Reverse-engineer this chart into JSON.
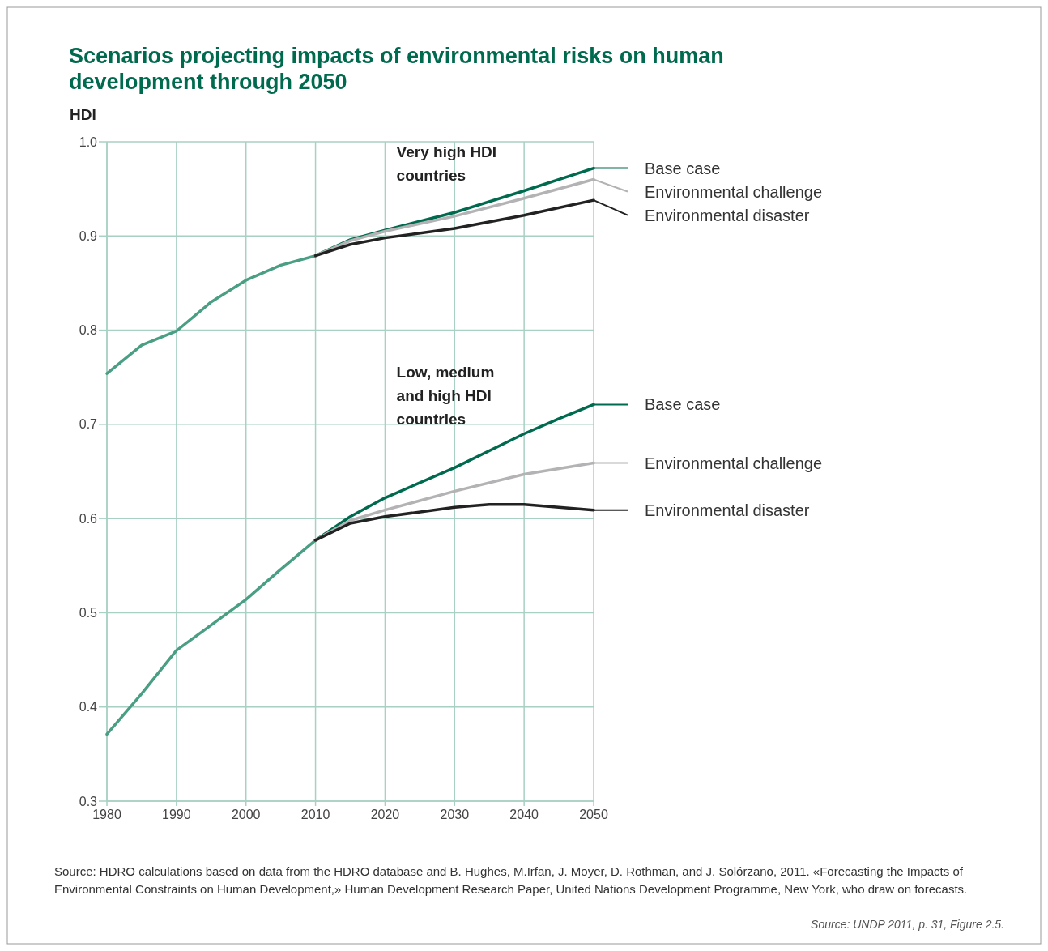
{
  "chart_data": {
    "type": "line",
    "title": "Scenarios projecting impacts of environmental risks on human development through 2050",
    "ylabel": "HDI",
    "xlim": [
      1980,
      2050
    ],
    "xticks": [
      1980,
      1990,
      2000,
      2010,
      2020,
      2030,
      2040,
      2050
    ],
    "ylim": [
      0.3,
      1.0
    ],
    "yticks": [
      {
        "value": 0.3,
        "label": "0.3"
      },
      {
        "value": 0.4,
        "label": "0.4"
      },
      {
        "value": 0.5,
        "label": "0.5"
      },
      {
        "value": 0.6,
        "label": "0.6"
      },
      {
        "value": 0.7,
        "label": "0.7"
      },
      {
        "value": 0.8,
        "label": "0.8"
      },
      {
        "value": 0.9,
        "label": "0.9"
      },
      {
        "value": 1.0,
        "label": "1.0"
      }
    ],
    "grid": true,
    "line_style": "solid",
    "marker": "none",
    "legend": "right",
    "series": [
      {
        "color": "#4a9e84",
        "x": [
          1980,
          1985,
          1990,
          1995,
          2000,
          2005,
          2010
        ],
        "values": [
          0.754,
          0.784,
          0.799,
          0.83,
          0.853,
          0.869,
          0.879
        ]
      },
      {
        "name": "Base case",
        "color": "#006a4e",
        "x": [
          2010,
          2015,
          2020,
          2030,
          2040,
          2050
        ],
        "values": [
          0.879,
          0.896,
          0.906,
          0.925,
          0.948,
          0.972
        ]
      },
      {
        "name": "Environmental challenge",
        "color": "#b3b3b5",
        "x": [
          2010,
          2015,
          2020,
          2030,
          2040,
          2050
        ],
        "values": [
          0.879,
          0.895,
          0.905,
          0.921,
          0.94,
          0.96
        ]
      },
      {
        "name": "Environmental disaster",
        "color": "#222222",
        "x": [
          2010,
          2015,
          2020,
          2030,
          2040,
          2050
        ],
        "values": [
          0.879,
          0.891,
          0.898,
          0.908,
          0.922,
          0.938
        ]
      },
      {
        "color": "#4a9e84",
        "x": [
          1980,
          1985,
          1990,
          1995,
          2000,
          2005,
          2010
        ],
        "values": [
          0.371,
          0.414,
          0.46,
          0.487,
          0.514,
          0.546,
          0.577
        ]
      },
      {
        "name": "Base case",
        "color": "#006a4e",
        "x": [
          2010,
          2015,
          2020,
          2030,
          2040,
          2045,
          2050
        ],
        "values": [
          0.577,
          0.602,
          0.622,
          0.654,
          0.69,
          0.706,
          0.721
        ]
      },
      {
        "name": "Environmental challenge",
        "color": "#b3b3b5",
        "x": [
          2010,
          2015,
          2020,
          2030,
          2040,
          2050
        ],
        "values": [
          0.577,
          0.598,
          0.609,
          0.629,
          0.647,
          0.659
        ]
      },
      {
        "name": "Environmental disaster",
        "color": "#222222",
        "x": [
          2010,
          2015,
          2020,
          2030,
          2035,
          2040,
          2045,
          2050
        ],
        "values": [
          0.577,
          0.595,
          0.602,
          0.612,
          0.615,
          0.615,
          0.612,
          0.609
        ]
      }
    ],
    "annotations": [
      "Very high HDI countries",
      "Low, medium and high HDI countries",
      "Source: HDRO calculations based on data from the HDRO database and B. Hughes, M.Irfan, J. Moyer, D. Rothman, and J. Solórzano, 2011. «Forecasting the Impacts of Environmental Constraints on Human Development,» Human Development Research Paper, United Nations Development Programme, New York, who draw on forecasts.",
      "Source: UNDP 2011, p. 31, Figure 2.5."
    ]
  }
}
